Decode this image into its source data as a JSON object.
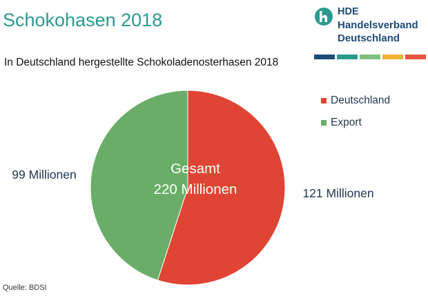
{
  "title": "Schokohasen 2018",
  "subtitle": "In Deutschland hergestellte Schokoladenosterhasen 2018",
  "logo": {
    "line1": "HDE",
    "line2": "Handelsverband",
    "line3": "Deutschland",
    "stripe_colors": [
      "#1d4b79",
      "#2a9a8f",
      "#7fbf7f",
      "#f2b233",
      "#e8553e"
    ]
  },
  "chart_data": {
    "type": "pie",
    "title": "",
    "center_label": [
      "Gesamt",
      "220 Millionen"
    ],
    "slices": [
      {
        "label": "Deutschland",
        "value": 121,
        "value_label": "121 Millionen",
        "color": "#e04434"
      },
      {
        "label": "Export",
        "value": 99,
        "value_label": "99 Millionen",
        "color": "#6aad68"
      }
    ],
    "legend_position": "top-right"
  },
  "source": "Quelle:  BDSI"
}
